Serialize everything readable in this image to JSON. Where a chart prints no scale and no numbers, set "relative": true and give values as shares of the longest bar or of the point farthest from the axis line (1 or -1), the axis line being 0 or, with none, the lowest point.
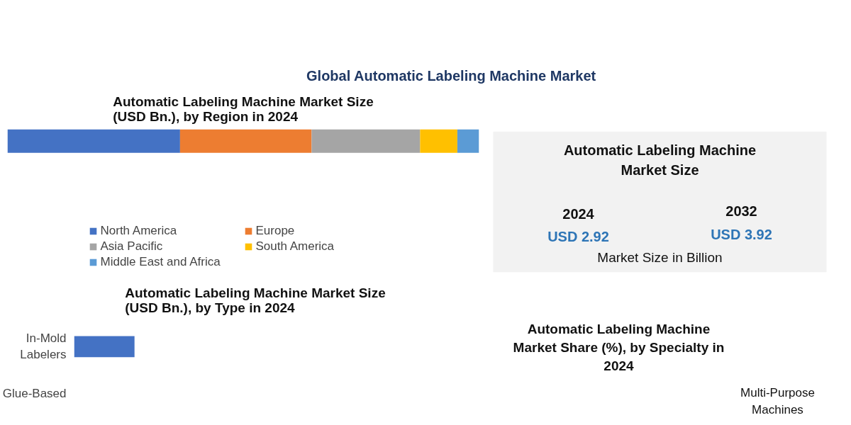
{
  "chart_data": [
    {
      "type": "bar",
      "orientation": "horizontal",
      "stacked": true,
      "relative": true,
      "title": "Automatic Labeling Machine Market Size\n(USD Bn.), by Region in 2024",
      "annotations": [
        "Global Automatic Labeling Machine Market"
      ],
      "categories": [
        null
      ],
      "series": [
        {
          "name": "North America",
          "color": "#4472c4",
          "values": [
            0.366
          ]
        },
        {
          "name": "Europe",
          "color": "#ed7d31",
          "values": [
            0.279
          ]
        },
        {
          "name": "Asia Pacific",
          "color": "#a5a5a5",
          "values": [
            0.23
          ]
        },
        {
          "name": "South America",
          "color": "#ffc000",
          "values": [
            0.079
          ]
        },
        {
          "name": "Middle East and Africa",
          "color": "#5b9bd5",
          "values": [
            0.046
          ]
        }
      ],
      "legend": "bottom"
    },
    {
      "type": "other",
      "title": "Automatic Labeling Machine\nMarket Size",
      "annotations": [
        "2024",
        "USD 2.92",
        "2032",
        "USD 3.92",
        "Market Size in Billion"
      ]
    },
    {
      "type": "bar",
      "orientation": "horizontal",
      "relative": true,
      "title": "Automatic Labeling Machine Market Size\n(USD Bn.), by  Type in 2024",
      "categories": [
        "In-Mold Labelers",
        "Glue-Based"
      ],
      "values": [
        1,
        null
      ],
      "color": "#4472c4"
    },
    {
      "type": "other",
      "title": "Automatic Labeling Machine\nMarket Share (%), by Specialty in\n2024",
      "annotations": [
        "Multi-Purpose Machines"
      ]
    }
  ]
}
